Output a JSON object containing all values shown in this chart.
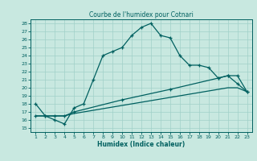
{
  "title": "Courbe de l'humidex pour Cotnari",
  "xlabel": "Humidex (Indice chaleur)",
  "bg_color": "#c8e8e0",
  "line_color": "#006060",
  "grid_color": "#a0d0c8",
  "ylim": [
    14.5,
    28.5
  ],
  "xlim": [
    0.5,
    23.5
  ],
  "yticks": [
    15,
    16,
    17,
    18,
    19,
    20,
    21,
    22,
    23,
    24,
    25,
    26,
    27,
    28
  ],
  "xticks": [
    1,
    2,
    3,
    4,
    5,
    6,
    7,
    8,
    9,
    10,
    11,
    12,
    13,
    14,
    15,
    16,
    17,
    18,
    19,
    20,
    21,
    22,
    23
  ],
  "line1_x": [
    1,
    2,
    3,
    4,
    5,
    6,
    7,
    8,
    9,
    10,
    11,
    12,
    13,
    14,
    15,
    16,
    17,
    18,
    19,
    20,
    21,
    22,
    23
  ],
  "line1_y": [
    18,
    16.5,
    16,
    15.5,
    17.5,
    18,
    21.0,
    24.0,
    24.5,
    25.0,
    26.5,
    27.5,
    28.0,
    26.5,
    26.2,
    24.0,
    22.8,
    22.8,
    22.5,
    21.2,
    21.5,
    20.5,
    19.5
  ],
  "line2_x": [
    1,
    2,
    3,
    4,
    5,
    10,
    15,
    20,
    21,
    22,
    23
  ],
  "line2_y": [
    16.5,
    16.5,
    16.5,
    16.5,
    17.0,
    18.5,
    19.8,
    21.2,
    21.5,
    21.5,
    19.5
  ],
  "line3_x": [
    1,
    2,
    3,
    4,
    5,
    10,
    15,
    20,
    21,
    22,
    23
  ],
  "line3_y": [
    16.5,
    16.5,
    16.5,
    16.5,
    16.8,
    17.8,
    18.8,
    19.8,
    20.0,
    20.0,
    19.5
  ]
}
